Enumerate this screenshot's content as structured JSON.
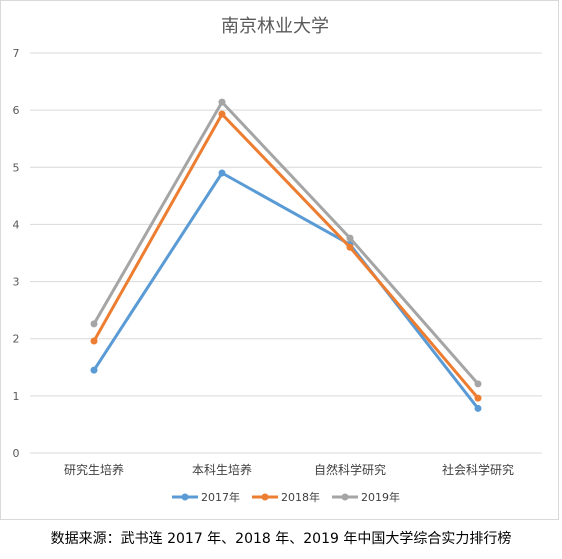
{
  "chart_data": {
    "type": "line",
    "title": "南京林业大学",
    "categories": [
      "研究生培养",
      "本科生培养",
      "自然科学研究",
      "社会科学研究"
    ],
    "ylim": [
      0,
      7
    ],
    "yticks": [
      0,
      1,
      2,
      3,
      4,
      5,
      6,
      7
    ],
    "grid": true,
    "legend_position": "bottom",
    "series": [
      {
        "name": "2017年",
        "color": "#5b9bd5",
        "values": [
          1.45,
          4.9,
          3.65,
          0.78
        ]
      },
      {
        "name": "2018年",
        "color": "#ed7d31",
        "values": [
          1.96,
          5.93,
          3.6,
          0.96
        ]
      },
      {
        "name": "2019年",
        "color": "#a5a5a5",
        "values": [
          2.26,
          6.14,
          3.76,
          1.21
        ]
      }
    ]
  },
  "source_note": "数据来源：武书连 2017 年、2018 年、2019 年中国大学综合实力排行榜"
}
